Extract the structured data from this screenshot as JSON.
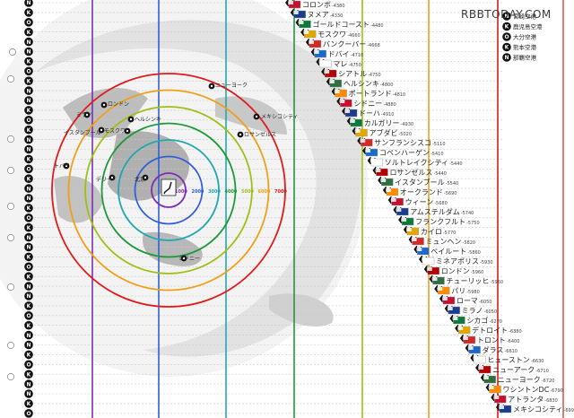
{
  "watermark": "RBBTODAY.COM",
  "legend": [
    {
      "code": "N",
      "label": "宮崎空港"
    },
    {
      "code": "K",
      "label": "鹿児島空港"
    },
    {
      "code": "O",
      "label": "大分空港"
    },
    {
      "code": "K",
      "label": "熊本空港"
    },
    {
      "code": "N",
      "label": "那覇空港"
    }
  ],
  "ring_labels": [
    "1000",
    "2000",
    "3000",
    "4000",
    "5000",
    "6000",
    "7000"
  ],
  "map_cities": [
    "ニューヨーク",
    "ヘルシンキ",
    "メキシコシティ",
    "ロサンゼルス",
    "モスクワ",
    "イスタンブール",
    "ミラノ",
    "ロンドン",
    "トバイ",
    "デリー",
    "北京",
    "シドニー"
  ],
  "destinations": [
    {
      "name": "コロンボ",
      "dist": "4380"
    },
    {
      "name": "ヌメア",
      "dist": "4330"
    },
    {
      "name": "ゴールドコースト",
      "dist": "4480"
    },
    {
      "name": "モスクワ",
      "dist": "4660"
    },
    {
      "name": "バンクーバー",
      "dist": "4668"
    },
    {
      "name": "ドバイ",
      "dist": "4710"
    },
    {
      "name": "マレ",
      "dist": "4750"
    },
    {
      "name": "シアトル",
      "dist": "4750"
    },
    {
      "name": "ヘルシンキ",
      "dist": "4800"
    },
    {
      "name": "ポートランド",
      "dist": "4810"
    },
    {
      "name": "シドニー",
      "dist": "4880"
    },
    {
      "name": "ドーハ",
      "dist": "4910"
    },
    {
      "name": "カルガリー",
      "dist": "4930"
    },
    {
      "name": "アブダビ",
      "dist": "5020"
    },
    {
      "name": "サンフランシスコ",
      "dist": "5110"
    },
    {
      "name": "コペンハーゲン",
      "dist": "5410"
    },
    {
      "name": "ソルトレイクシティ",
      "dist": "5440"
    },
    {
      "name": "ロサンゼルス",
      "dist": "5440"
    },
    {
      "name": "イスタンブール",
      "dist": "5540"
    },
    {
      "name": "オークランド",
      "dist": "5690"
    },
    {
      "name": "ウィーン",
      "dist": "5680"
    },
    {
      "name": "アムステルダム",
      "dist": "5740"
    },
    {
      "name": "フランクフルト",
      "dist": "5750"
    },
    {
      "name": "カイロ",
      "dist": "5770"
    },
    {
      "name": "ミュンヘン",
      "dist": "5820"
    },
    {
      "name": "ベイルート",
      "dist": "5860"
    },
    {
      "name": "ミネアポリス",
      "dist": "5930"
    },
    {
      "name": "ロンドン",
      "dist": "5960"
    },
    {
      "name": "チューリッヒ",
      "dist": "5960"
    },
    {
      "name": "パリ",
      "dist": "5980"
    },
    {
      "name": "ローマ",
      "dist": "6050"
    },
    {
      "name": "ミラノ",
      "dist": "6050"
    },
    {
      "name": "シカゴ",
      "dist": "6270"
    },
    {
      "name": "デトロイト",
      "dist": "6380"
    },
    {
      "name": "トロント",
      "dist": "6400"
    },
    {
      "name": "ダラス",
      "dist": "6610"
    },
    {
      "name": "ヒューストン",
      "dist": "6630"
    },
    {
      "name": "ニューアーク",
      "dist": "6710"
    },
    {
      "name": "ニューヨーク",
      "dist": "6720"
    },
    {
      "name": "ワシントンDC",
      "dist": "6790"
    },
    {
      "name": "アトランタ",
      "dist": "6830"
    },
    {
      "name": "メキシコシティ",
      "dist": "6990"
    }
  ],
  "colors": {
    "ring_1000": "#7b2fb5",
    "ring_2000": "#2f5fd6",
    "ring_3000": "#1fa8b0",
    "ring_4000": "#1c9a3a",
    "ring_5000": "#9fbf16",
    "ring_6000": "#f0a018",
    "ring_7000": "#e01b1b",
    "badge": "#111111",
    "flight_icon": "#111111"
  }
}
